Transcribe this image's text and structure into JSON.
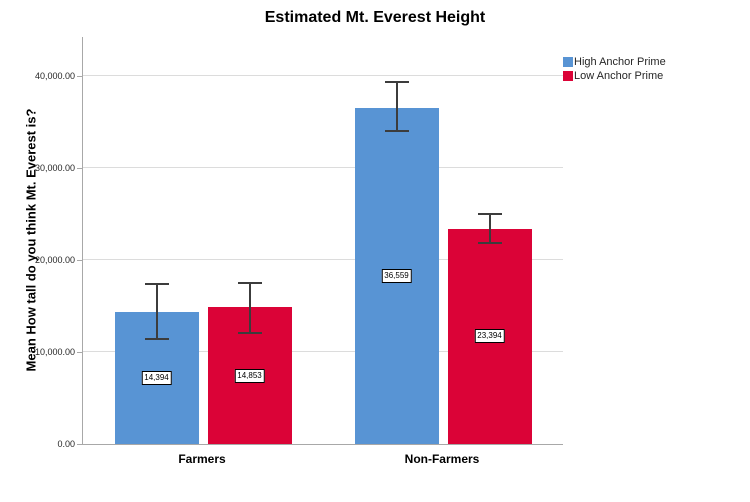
{
  "chart_data": {
    "type": "bar",
    "title": "Estimated Mt. Everest Height",
    "categories": [
      "Farmers",
      "Non-Farmers"
    ],
    "series": [
      {
        "name": "High Anchor Prime",
        "color": "#5894D4",
        "values": [
          14394,
          36559
        ],
        "value_labels": [
          "14,394",
          "36,559"
        ],
        "error_low": [
          11420,
          34020
        ],
        "error_high": [
          17360,
          39380
        ]
      },
      {
        "name": "Low Anchor Prime",
        "color": "#DB0337",
        "values": [
          14853,
          23394
        ],
        "value_labels": [
          "14,853",
          "23,394"
        ],
        "error_low": [
          12100,
          21880
        ],
        "error_high": [
          17530,
          25000
        ]
      }
    ],
    "xlabel": "",
    "ylabel": "Mean How tall do you think Mt. Everest is?",
    "ylim": [
      0,
      44240
    ],
    "yticks": [
      {
        "value": 0,
        "label": "0.00"
      },
      {
        "value": 10000,
        "label": "10,000.00"
      },
      {
        "value": 20000,
        "label": "20,000.00"
      },
      {
        "value": 30000,
        "label": "30,000.00"
      },
      {
        "value": 40000,
        "label": "40,000.00"
      }
    ],
    "grid": true,
    "legend_position": "top-right",
    "colors": {
      "gridline": "#DCDCDC",
      "axis": "#A8A8A8",
      "error_bar": "#3C3C3C",
      "label_box_bg": "#FFFFFF",
      "label_box_border": "#000000",
      "tick_text": "#262626"
    }
  }
}
